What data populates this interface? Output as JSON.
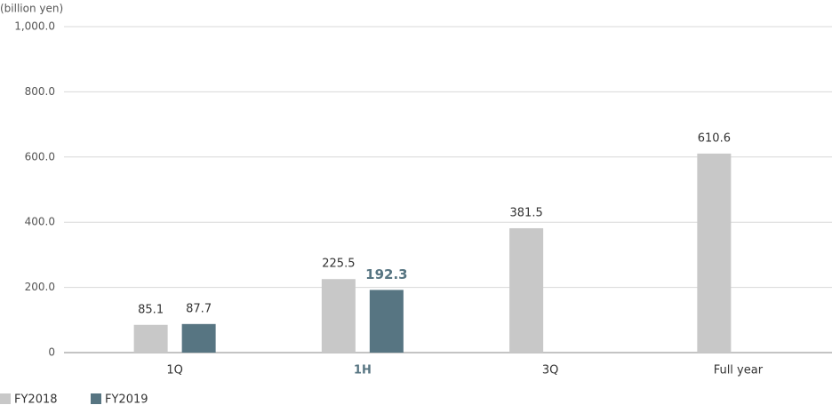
{
  "chart_data": {
    "type": "bar",
    "y_axis_label": "(billion yen)",
    "categories": [
      "1Q",
      "1H",
      "3Q",
      "Full year"
    ],
    "series": [
      {
        "name": "FY2018",
        "color": "#c8c8c8",
        "values": [
          85.1,
          225.5,
          381.5,
          610.6
        ]
      },
      {
        "name": "FY2019",
        "color": "#577582",
        "values": [
          87.7,
          192.3,
          null,
          null
        ]
      }
    ],
    "ylim": [
      0,
      1000
    ],
    "yticks": [
      0,
      {
        "value": 200,
        "label": "200.0"
      },
      {
        "value": 400,
        "label": "400.0"
      },
      {
        "value": 600,
        "label": "600.0"
      },
      {
        "value": 800,
        "label": "800.0"
      },
      {
        "value": 1000,
        "label": "1,000.0"
      }
    ],
    "grid": true,
    "legend": "bottom-left"
  }
}
